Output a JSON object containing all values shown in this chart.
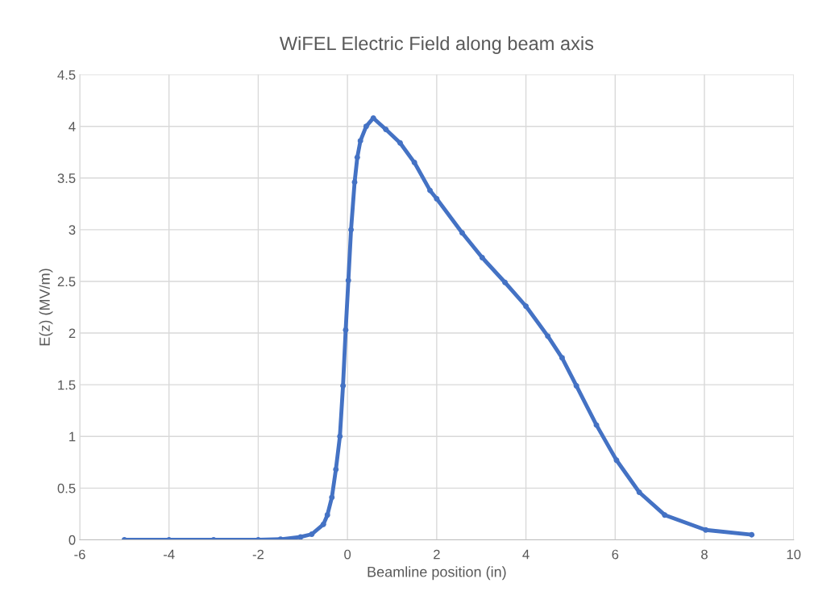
{
  "chart_data": {
    "type": "line",
    "title": "WiFEL Electric Field along beam axis",
    "xlabel": "Beamline position (in)",
    "ylabel": "E(z) (MV/m)",
    "series": [
      {
        "color": "#4472c4",
        "x": [
          -5,
          -4,
          -3,
          -2,
          -1.5,
          -1.05,
          -0.8,
          -0.54,
          -0.45,
          -0.35,
          -0.26,
          -0.17,
          -0.1,
          -0.04,
          0.02,
          0.08,
          0.16,
          0.22,
          0.29,
          0.42,
          0.58,
          0.86,
          1.18,
          1.5,
          1.85,
          2.0,
          2.57,
          3.02,
          3.53,
          4.0,
          4.49,
          4.81,
          5.13,
          5.58,
          6.03,
          6.54,
          7.11,
          8.03,
          9.06
        ],
        "values": [
          0,
          0,
          0,
          0,
          0.005,
          0.027,
          0.054,
          0.149,
          0.24,
          0.41,
          0.68,
          1.0,
          1.49,
          2.03,
          2.51,
          3.0,
          3.46,
          3.7,
          3.86,
          4.0,
          4.08,
          3.97,
          3.84,
          3.65,
          3.38,
          3.3,
          2.97,
          2.73,
          2.49,
          2.26,
          1.97,
          1.76,
          1.49,
          1.11,
          0.77,
          0.46,
          0.24,
          0.095,
          0.049
        ]
      }
    ],
    "xlim": [
      -6,
      10
    ],
    "xticks": [
      -6,
      -4,
      -2,
      0,
      2,
      4,
      6,
      8,
      10
    ],
    "ylim": [
      0,
      4.5
    ],
    "yticks": [
      0,
      0.5,
      1,
      1.5,
      2,
      2.5,
      3,
      3.5,
      4,
      4.5
    ],
    "grid": true,
    "legend": false,
    "marker": "circle",
    "line_style": "solid"
  }
}
